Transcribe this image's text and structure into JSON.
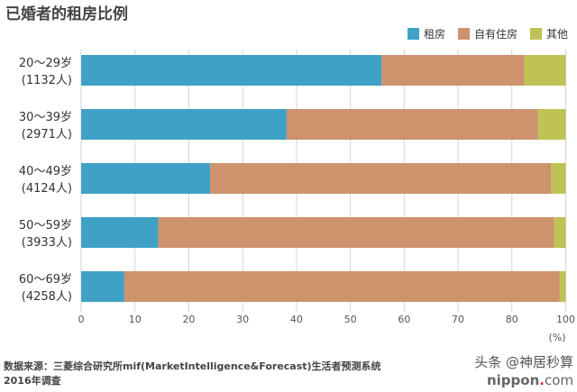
{
  "chart_data": {
    "type": "bar",
    "orientation": "horizontal",
    "stacked": true,
    "title": "已婚者的租房比例",
    "categories": [
      {
        "age": "20〜29岁",
        "n": "(1132人)"
      },
      {
        "age": "30〜39岁",
        "n": "(2971人)"
      },
      {
        "age": "40〜49岁",
        "n": "(4124人)"
      },
      {
        "age": "50〜59岁",
        "n": "(3933人)"
      },
      {
        "age": "60〜69岁",
        "n": "(4258人)"
      }
    ],
    "series": [
      {
        "name": "租房",
        "color": "#3fa1c5",
        "values": [
          62.0,
          42.4,
          26.6,
          15.9,
          8.9
        ]
      },
      {
        "name": "自有住房",
        "color": "#cd936d",
        "values": [
          29.5,
          51.9,
          70.4,
          81.7,
          89.8
        ]
      },
      {
        "name": "其他",
        "color": "#bfc254",
        "values": [
          8.5,
          5.7,
          3.0,
          2.4,
          1.3
        ]
      }
    ],
    "xtick_labels": [
      "0",
      "10",
      "20",
      "30",
      "40",
      "50",
      "60",
      "70",
      "80",
      "100"
    ],
    "xunit": "(%)",
    "xlim": [
      0,
      100
    ],
    "grid": true,
    "legend": "top-right"
  },
  "footer": {
    "source_line1": "数据来源：三菱综合研究所mif(MarketIntelligence&Forecast)生活者预测系统",
    "source_line2": "2016年调查"
  },
  "watermark": {
    "line1": "头条 @神居秒算",
    "site": "nippon",
    "dot": ".",
    "tld": "com"
  }
}
